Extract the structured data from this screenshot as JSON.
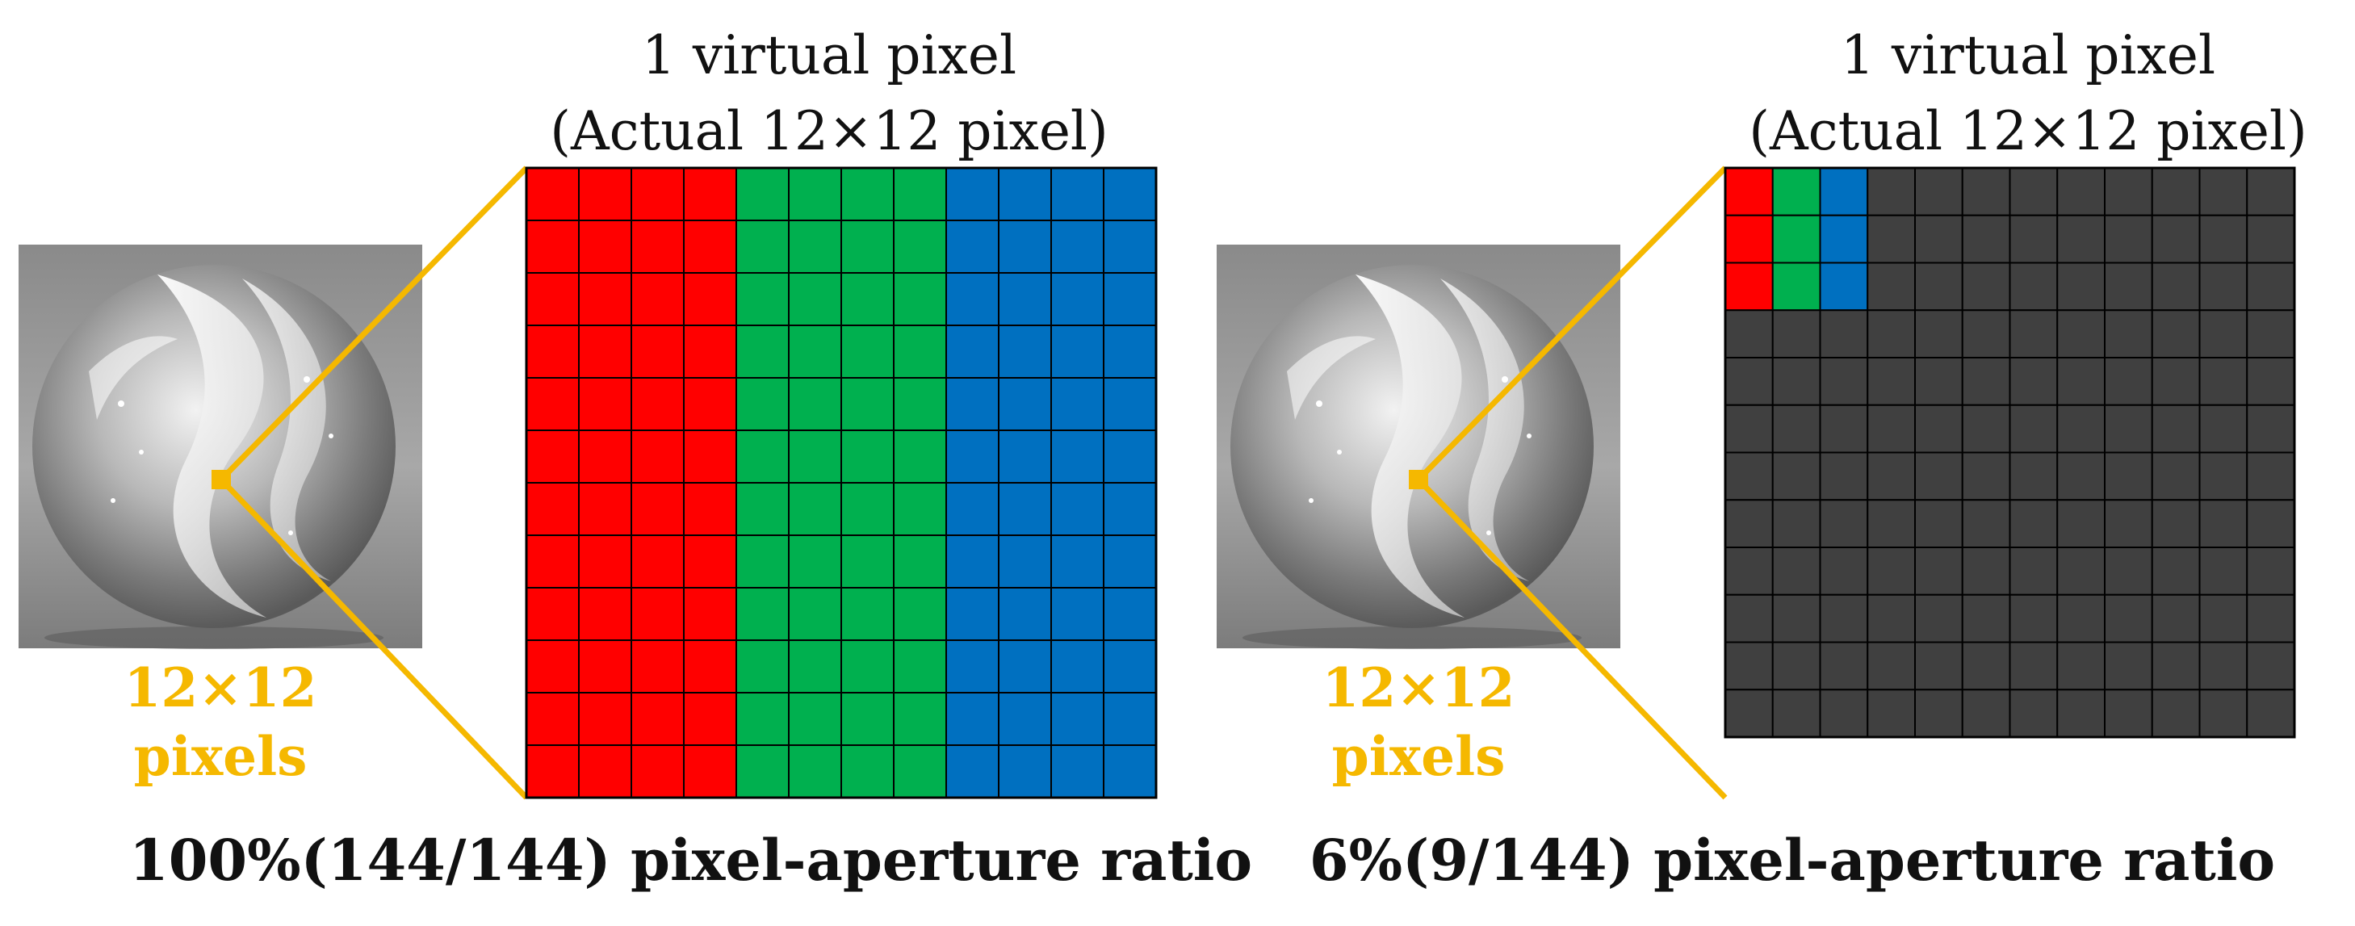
{
  "colors": {
    "red": "#ff0000",
    "green": "#00b04f",
    "blue": "#0070c0",
    "dark": "#404040",
    "grid_line": "#000000",
    "highlight": "#f5b800"
  },
  "panels": [
    {
      "id": "left",
      "title_line1": "1 virtual pixel",
      "title_line2": "(Actual 12×12 pixel)",
      "label_line1": "12×12",
      "label_line2": "pixels",
      "caption": "100%(144/144) pixel-aperture ratio",
      "grid_size": 12,
      "aperture": "full",
      "open_pixels": 144,
      "total_pixels": 144
    },
    {
      "id": "right",
      "title_line1": "1 virtual pixel",
      "title_line2": "(Actual 12×12 pixel)",
      "label_line1": "12×12",
      "label_line2": "pixels",
      "caption": "6%(9/144) pixel-aperture ratio",
      "grid_size": 12,
      "aperture": "3x3",
      "open_pixels": 9,
      "total_pixels": 144
    }
  ]
}
